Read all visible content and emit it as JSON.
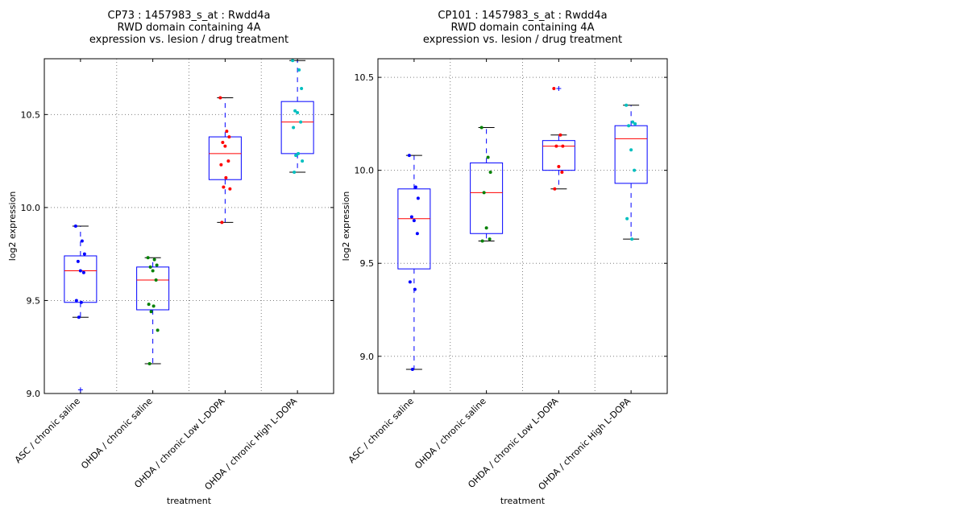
{
  "chart_data": [
    {
      "type": "box",
      "title": [
        "CP73 : 1457983_s_at : Rwdd4a",
        "RWD domain containing 4A",
        "expression vs. lesion / drug treatment"
      ],
      "xlabel": "treatment",
      "ylabel": "log2 expression",
      "ylim": [
        9.0,
        10.8
      ],
      "yticks": [
        9.0,
        9.5,
        10.0,
        10.5
      ],
      "ytick_labels": [
        "9.0",
        "9.5",
        "10.0",
        "10.5"
      ],
      "grid": true,
      "categories": [
        "ASC / chronic saline",
        "OHDA / chronic saline",
        "OHDA / chronic Low L-DOPA",
        "OHDA / chronic High L-DOPA"
      ],
      "series": [
        {
          "name": "ASC / chronic saline",
          "color": "#0000ff",
          "whisker_low": 9.41,
          "q1": 9.49,
          "median": 9.66,
          "q3": 9.74,
          "whisker_high": 9.9,
          "outliers": [
            9.02
          ],
          "points": [
            9.9,
            9.82,
            9.75,
            9.71,
            9.66,
            9.65,
            9.5,
            9.49,
            9.41
          ]
        },
        {
          "name": "OHDA / chronic saline",
          "color": "#008000",
          "whisker_low": 9.16,
          "q1": 9.45,
          "median": 9.61,
          "q3": 9.68,
          "whisker_high": 9.73,
          "outliers": [],
          "points": [
            9.73,
            9.72,
            9.69,
            9.68,
            9.66,
            9.61,
            9.48,
            9.47,
            9.44,
            9.34,
            9.16
          ]
        },
        {
          "name": "OHDA / chronic Low L-DOPA",
          "color": "#ff0000",
          "whisker_low": 9.92,
          "q1": 10.15,
          "median": 10.29,
          "q3": 10.38,
          "whisker_high": 10.59,
          "outliers": [],
          "points": [
            10.59,
            10.41,
            10.38,
            10.35,
            10.33,
            10.25,
            10.23,
            10.16,
            10.11,
            10.1,
            9.92
          ]
        },
        {
          "name": "OHDA / chronic High L-DOPA",
          "color": "#00bfbf",
          "whisker_low": 10.19,
          "q1": 10.29,
          "median": 10.46,
          "q3": 10.57,
          "whisker_high": 10.79,
          "outliers": [],
          "points": [
            10.79,
            10.74,
            10.64,
            10.52,
            10.51,
            10.46,
            10.43,
            10.29,
            10.28,
            10.25,
            10.19
          ]
        }
      ]
    },
    {
      "type": "box",
      "title": [
        "CP101 : 1457983_s_at : Rwdd4a",
        "RWD domain containing 4A",
        "expression vs. lesion / drug treatment"
      ],
      "xlabel": "treatment",
      "ylabel": "log2 expression",
      "ylim": [
        8.8,
        10.6
      ],
      "yticks": [
        9.0,
        9.5,
        10.0,
        10.5
      ],
      "ytick_labels": [
        "9.0",
        "9.5",
        "10.0",
        "10.5"
      ],
      "grid": true,
      "categories": [
        "ASC / chronic saline",
        "OHDA / chronic saline",
        "OHDA / chronic Low L-DOPA",
        "OHDA / chronic High L-DOPA"
      ],
      "series": [
        {
          "name": "ASC / chronic saline",
          "color": "#0000ff",
          "whisker_low": 8.93,
          "q1": 9.47,
          "median": 9.74,
          "q3": 9.9,
          "whisker_high": 10.08,
          "outliers": [],
          "points": [
            10.08,
            9.91,
            9.85,
            9.75,
            9.73,
            9.66,
            9.4,
            9.36,
            8.93
          ]
        },
        {
          "name": "OHDA / chronic saline",
          "color": "#008000",
          "whisker_low": 9.62,
          "q1": 9.66,
          "median": 9.88,
          "q3": 10.04,
          "whisker_high": 10.23,
          "outliers": [],
          "points": [
            10.23,
            10.07,
            9.99,
            9.88,
            9.69,
            9.63,
            9.62
          ]
        },
        {
          "name": "OHDA / chronic Low L-DOPA",
          "color": "#ff0000",
          "whisker_low": 9.9,
          "q1": 10.0,
          "median": 10.13,
          "q3": 10.16,
          "whisker_high": 10.19,
          "outliers": [
            10.44
          ],
          "points": [
            10.44,
            10.19,
            10.13,
            10.13,
            10.02,
            9.99,
            9.9
          ]
        },
        {
          "name": "OHDA / chronic High L-DOPA",
          "color": "#00bfbf",
          "whisker_low": 9.63,
          "q1": 9.93,
          "median": 10.17,
          "q3": 10.24,
          "whisker_high": 10.35,
          "outliers": [],
          "points": [
            10.35,
            10.26,
            10.25,
            10.24,
            10.11,
            10.0,
            9.74,
            9.63
          ]
        }
      ]
    }
  ]
}
